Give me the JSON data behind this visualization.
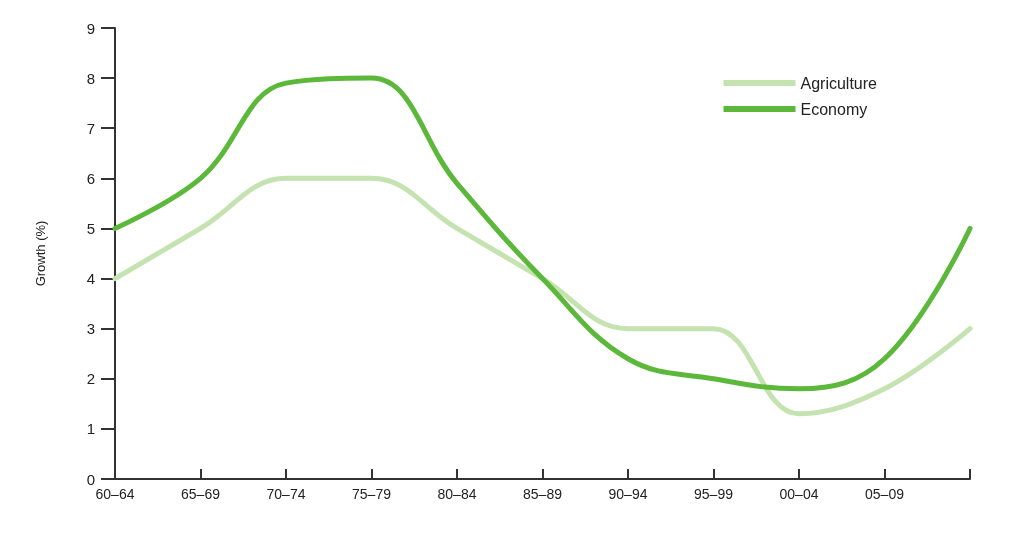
{
  "chart_data": {
    "type": "line",
    "ylabel": "Growth (%)",
    "categories": [
      "60–64",
      "65–69",
      "70–74",
      "75–79",
      "80–84",
      "85–89",
      "90–94",
      "95–99",
      "00–04",
      "05–09",
      null
    ],
    "series": [
      {
        "name": "Agriculture",
        "color": "#c4e3b0",
        "values": [
          4,
          5,
          6,
          6,
          5,
          4,
          3,
          3,
          1.3,
          1.8,
          3
        ]
      },
      {
        "name": "Economy",
        "color": "#5cb83a",
        "values": [
          5,
          6,
          7.9,
          8,
          5.9,
          4,
          2.4,
          2,
          1.8,
          2.4,
          5
        ]
      }
    ],
    "ylim": [
      0,
      9
    ],
    "yticks": [
      0,
      1,
      2,
      3,
      4,
      5,
      6,
      7,
      8,
      9
    ],
    "grid": false,
    "legend": "top right",
    "marker": "none",
    "line_style": "solid"
  }
}
